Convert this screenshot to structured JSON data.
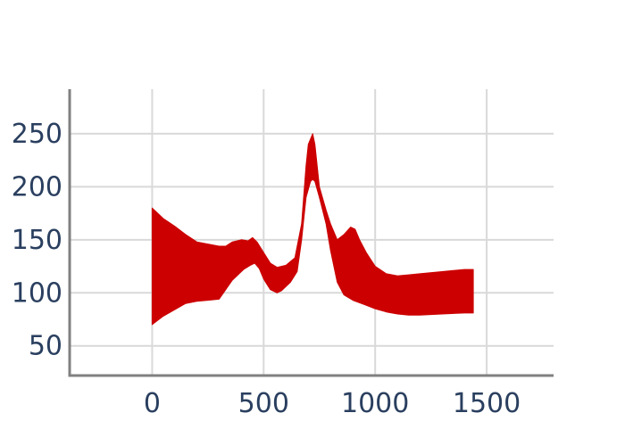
{
  "chart_data": {
    "type": "area",
    "title": "",
    "xlabel": "",
    "ylabel": "",
    "xlim": [
      -370,
      1800
    ],
    "ylim": [
      22,
      292
    ],
    "x_ticks": [
      0,
      500,
      1000,
      1500
    ],
    "y_ticks": [
      50,
      100,
      150,
      200,
      250
    ],
    "grid": true,
    "legend": "none",
    "fill_color": "#cc0000",
    "axis_color": "#808080",
    "grid_color": "#d9d9d9",
    "tick_color": "#2a3f5f",
    "series": [
      {
        "upper": {
          "x": [
            0,
            50,
            100,
            150,
            200,
            250,
            300,
            330,
            360,
            400,
            430,
            450,
            470,
            500,
            530,
            560,
            600,
            640,
            670,
            690,
            700,
            720,
            730,
            750,
            780,
            800,
            830,
            860,
            890,
            910,
            930,
            960,
            1000,
            1050,
            1100,
            1150,
            1200,
            1300,
            1400,
            1440
          ],
          "y": [
            180,
            170,
            163,
            155,
            148,
            146,
            144,
            144,
            148,
            150,
            149,
            152,
            148,
            138,
            128,
            124,
            126,
            133,
            165,
            220,
            240,
            250,
            240,
            200,
            178,
            165,
            150,
            155,
            162,
            160,
            150,
            138,
            125,
            118,
            116,
            117,
            118,
            120,
            122,
            122
          ]
        },
        "lower": {
          "x": [
            0,
            50,
            100,
            150,
            200,
            250,
            300,
            320,
            340,
            360,
            380,
            410,
            440,
            460,
            480,
            500,
            530,
            560,
            580,
            600,
            620,
            650,
            670,
            690,
            710,
            720,
            730,
            750,
            780,
            800,
            830,
            860,
            900,
            950,
            1000,
            1050,
            1100,
            1150,
            1200,
            1300,
            1400,
            1440
          ],
          "y": [
            70,
            78,
            84,
            90,
            92,
            93,
            94,
            100,
            106,
            112,
            116,
            122,
            126,
            128,
            123,
            113,
            103,
            100,
            102,
            106,
            110,
            120,
            150,
            190,
            205,
            207,
            205,
            190,
            165,
            140,
            110,
            98,
            93,
            89,
            85,
            82,
            80,
            79,
            79,
            80,
            81,
            81
          ]
        }
      }
    ]
  }
}
